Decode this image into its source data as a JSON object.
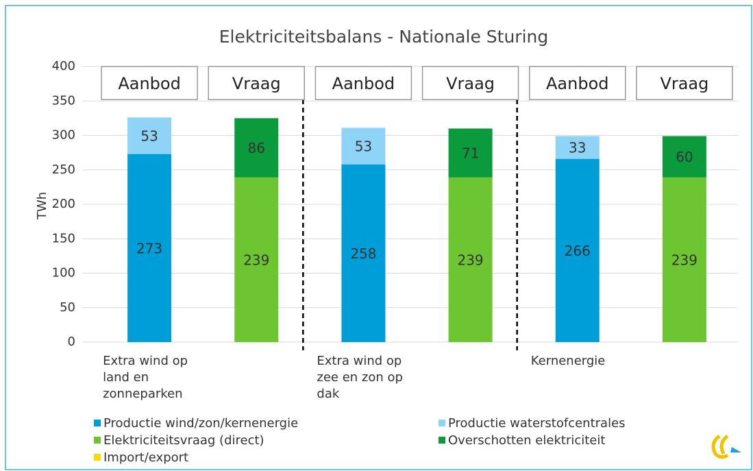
{
  "chart_data": {
    "type": "bar",
    "stacked": true,
    "title": "Elektriciteitsbalans - Nationale Sturing",
    "y_label": "TWh",
    "categories": [
      "Extra wind op land en zonneparken",
      null,
      "Extra wind op zee en zon op dak",
      null,
      "Kernenergie",
      null
    ],
    "bar_labels": [
      "Aanbod",
      "Vraag",
      "Aanbod",
      "Vraag",
      "Aanbod",
      "Vraag"
    ],
    "series": [
      {
        "name": "Productie wind/zon/kernenergie",
        "color": "#009ed8",
        "values": [
          273,
          null,
          258,
          null,
          266,
          null
        ]
      },
      {
        "name": "Productie waterstofcentrales",
        "color": "#8fd3f6",
        "values": [
          53,
          null,
          53,
          null,
          33,
          null
        ]
      },
      {
        "name": "Elektriciteitsvraag (direct)",
        "color": "#6dc531",
        "values": [
          null,
          239,
          null,
          239,
          null,
          239
        ]
      },
      {
        "name": "Overschotten elektriciteit",
        "color": "#0b9a3c",
        "values": [
          null,
          86,
          null,
          71,
          null,
          60
        ]
      },
      {
        "name": "Import/export",
        "color": "#ffd800",
        "values": [
          null,
          null,
          null,
          null,
          null,
          null
        ]
      }
    ],
    "ylim": [
      0,
      400
    ],
    "yticks": [
      0,
      50,
      100,
      150,
      200,
      250,
      300,
      350,
      400
    ],
    "grid": true
  }
}
